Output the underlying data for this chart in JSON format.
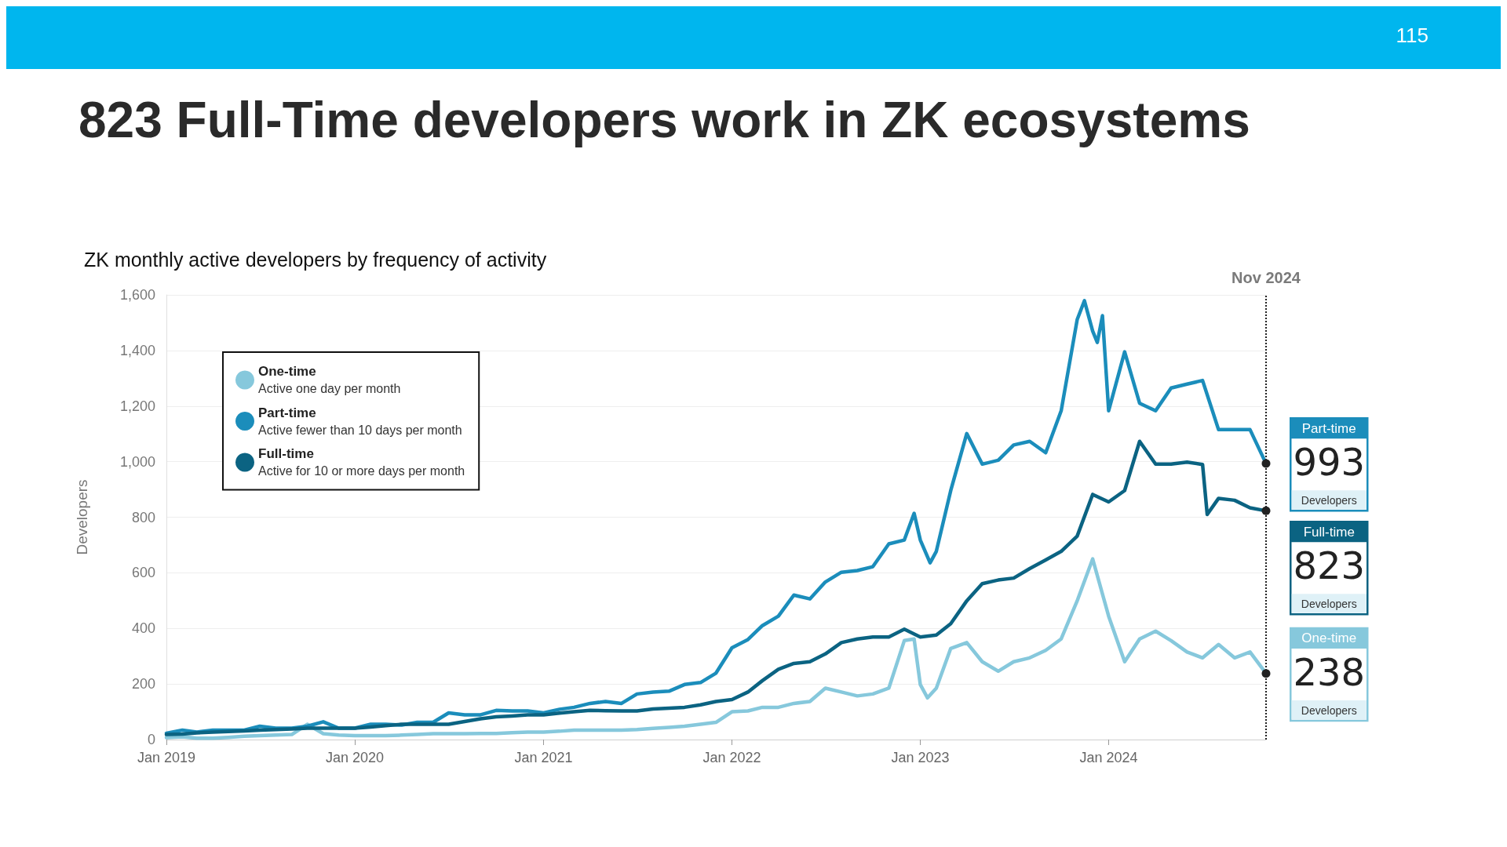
{
  "chart_data": {
    "type": "line",
    "title": "823 Full-Time developers work in ZK ecosystems",
    "subtitle": "ZK monthly active developers by frequency of activity",
    "ylabel": "Developers",
    "xlim": [
      "2019-01",
      "2024-11"
    ],
    "xticks": [
      {
        "value": "2019-01",
        "label": "Jan 2019"
      },
      {
        "value": "2020-01",
        "label": "Jan 2020"
      },
      {
        "value": "2021-01",
        "label": "Jan 2021"
      },
      {
        "value": "2022-01",
        "label": "Jan 2022"
      },
      {
        "value": "2023-01",
        "label": "Jan 2023"
      },
      {
        "value": "2024-01",
        "label": "Jan 2024"
      }
    ],
    "ylim": [
      0,
      1600
    ],
    "yticks": [
      {
        "value": 0,
        "label": "0"
      },
      {
        "value": 200,
        "label": "200"
      },
      {
        "value": 400,
        "label": "400"
      },
      {
        "value": 600,
        "label": "600"
      },
      {
        "value": 800,
        "label": "800"
      },
      {
        "value": 1000,
        "label": "1,000"
      },
      {
        "value": 1200,
        "label": "1,200"
      },
      {
        "value": 1400,
        "label": "1,400"
      },
      {
        "value": 1600,
        "label": "1,600"
      }
    ],
    "grid": "y",
    "legend": "top left",
    "marker": "none",
    "line_style": "solid",
    "ref_lines": [
      {
        "axis": "x",
        "value": "2024-11",
        "label": "Nov 2024",
        "color": "#222222",
        "line_style": "dotted"
      }
    ],
    "series": [
      {
        "name": "One-time",
        "color": "#86c8dc",
        "x": [
          "2019-01",
          "2019-02",
          "2019-03",
          "2019-04",
          "2019-05",
          "2019-06",
          "2019-07",
          "2019-08",
          "2019-09",
          "2019-10",
          "2019-11",
          "2019-12",
          "2020-01",
          "2020-02",
          "2020-03",
          "2020-04",
          "2020-05",
          "2020-06",
          "2020-07",
          "2020-08",
          "2020-09",
          "2020-10",
          "2020-11",
          "2020-12",
          "2021-01",
          "2021-02",
          "2021-03",
          "2021-04",
          "2021-05",
          "2021-06",
          "2021-07",
          "2021-08",
          "2021-09",
          "2021-10",
          "2021-11",
          "2021-12",
          "2022-01",
          "2022-02",
          "2022-03",
          "2022-04",
          "2022-05",
          "2022-06",
          "2022-07",
          "2022-08",
          "2022-09",
          "2022-10",
          "2022-11",
          "2022-12",
          "2022-12-20",
          "2023-01",
          "2023-01-15",
          "2023-02",
          "2023-03",
          "2023-04",
          "2023-05",
          "2023-06",
          "2023-07",
          "2023-08",
          "2023-09",
          "2023-10",
          "2023-11",
          "2023-12",
          "2024-01",
          "2024-02",
          "2024-03",
          "2024-04",
          "2024-05",
          "2024-06",
          "2024-07",
          "2024-08",
          "2024-09",
          "2024-10",
          "2024-11"
        ],
        "values": [
          7,
          10,
          5,
          5,
          8,
          12,
          14,
          16,
          18,
          55,
          21,
          16,
          14,
          14,
          14,
          16,
          18,
          21,
          21,
          21,
          22,
          22,
          25,
          27,
          27,
          30,
          34,
          34,
          34,
          34,
          36,
          40,
          44,
          48,
          55,
          62,
          100,
          103,
          116,
          116,
          130,
          137,
          185,
          171,
          157,
          164,
          185,
          356,
          362,
          198,
          150,
          185,
          328,
          349,
          280,
          246,
          280,
          294,
          321,
          362,
          499,
          650,
          444,
          280,
          362,
          390,
          356,
          315,
          294,
          342,
          294,
          315,
          238
        ],
        "value_labels": [
          null,
          null,
          null,
          null,
          null,
          null,
          null,
          null,
          null,
          null,
          null,
          null,
          null,
          null,
          null,
          null,
          null,
          null,
          null,
          null,
          null,
          null,
          null,
          null,
          null,
          null,
          null,
          null,
          null,
          null,
          null,
          null,
          null,
          null,
          null,
          null,
          null,
          null,
          null,
          null,
          null,
          null,
          null,
          null,
          null,
          null,
          null,
          null,
          null,
          null,
          null,
          null,
          null,
          null,
          null,
          null,
          null,
          null,
          null,
          null,
          null,
          null,
          null,
          null,
          null,
          null,
          null,
          null,
          null,
          null,
          null,
          null,
          "238"
        ]
      },
      {
        "name": "Part-time",
        "color": "#1b8dbb",
        "x": [
          "2019-01",
          "2019-02",
          "2019-03",
          "2019-04",
          "2019-05",
          "2019-06",
          "2019-07",
          "2019-08",
          "2019-09",
          "2019-10",
          "2019-11",
          "2019-12",
          "2020-01",
          "2020-02",
          "2020-03",
          "2020-04",
          "2020-05",
          "2020-06",
          "2020-07",
          "2020-08",
          "2020-09",
          "2020-10",
          "2020-11",
          "2020-12",
          "2021-01",
          "2021-02",
          "2021-03",
          "2021-04",
          "2021-05",
          "2021-06",
          "2021-07",
          "2021-08",
          "2021-09",
          "2021-10",
          "2021-11",
          "2021-12",
          "2022-01",
          "2022-02",
          "2022-03",
          "2022-04",
          "2022-05",
          "2022-06",
          "2022-07",
          "2022-08",
          "2022-09",
          "2022-10",
          "2022-11",
          "2022-12",
          "2022-12-20",
          "2023-01",
          "2023-01-20",
          "2023-02",
          "2023-03",
          "2023-04",
          "2023-05",
          "2023-06",
          "2023-07",
          "2023-08",
          "2023-09",
          "2023-10",
          "2023-11",
          "2023-11-15",
          "2023-12",
          "2023-12-10",
          "2023-12-20",
          "2024-01",
          "2024-02",
          "2024-03",
          "2024-04",
          "2024-05",
          "2024-06",
          "2024-07",
          "2024-08",
          "2024-09",
          "2024-10",
          "2024-11"
        ],
        "values": [
          23,
          34,
          27,
          34,
          34,
          34,
          48,
          41,
          41,
          48,
          64,
          41,
          41,
          55,
          55,
          52,
          62,
          62,
          96,
          89,
          89,
          105,
          103,
          103,
          96,
          109,
          116,
          130,
          137,
          130,
          164,
          171,
          174,
          198,
          205,
          239,
          330,
          360,
          410,
          444,
          520,
          506,
          567,
          602,
          608,
          622,
          704,
          718,
          814,
          718,
          636,
          677,
          896,
          1101,
          991,
          1005,
          1060,
          1073,
          1032,
          1183,
          1511,
          1579,
          1470,
          1429,
          1525,
          1183,
          1395,
          1210,
          1183,
          1265,
          1279,
          1292,
          1115,
          1115,
          1115,
          993
        ],
        "value_labels": [
          null,
          null,
          null,
          null,
          null,
          null,
          null,
          null,
          null,
          null,
          null,
          null,
          null,
          null,
          null,
          null,
          null,
          null,
          null,
          null,
          null,
          null,
          null,
          null,
          null,
          null,
          null,
          null,
          null,
          null,
          null,
          null,
          null,
          null,
          null,
          null,
          null,
          null,
          null,
          null,
          null,
          null,
          null,
          null,
          null,
          null,
          null,
          null,
          null,
          null,
          null,
          null,
          null,
          null,
          null,
          null,
          null,
          null,
          null,
          null,
          null,
          null,
          null,
          null,
          null,
          null,
          null,
          null,
          null,
          null,
          null,
          null,
          null,
          null,
          null,
          "993"
        ]
      },
      {
        "name": "Full-time",
        "color": "#0b6382",
        "x": [
          "2019-01",
          "2019-02",
          "2019-03",
          "2019-04",
          "2019-05",
          "2019-06",
          "2019-07",
          "2019-08",
          "2019-09",
          "2019-10",
          "2019-11",
          "2019-12",
          "2020-01",
          "2020-02",
          "2020-03",
          "2020-04",
          "2020-05",
          "2020-06",
          "2020-07",
          "2020-08",
          "2020-09",
          "2020-10",
          "2020-11",
          "2020-12",
          "2021-01",
          "2021-02",
          "2021-03",
          "2021-04",
          "2021-05",
          "2021-06",
          "2021-07",
          "2021-08",
          "2021-09",
          "2021-10",
          "2021-11",
          "2021-12",
          "2022-01",
          "2022-02",
          "2022-03",
          "2022-04",
          "2022-05",
          "2022-06",
          "2022-07",
          "2022-08",
          "2022-09",
          "2022-10",
          "2022-11",
          "2022-12",
          "2023-01",
          "2023-02",
          "2023-03",
          "2023-04",
          "2023-05",
          "2023-06",
          "2023-07",
          "2023-08",
          "2023-09",
          "2023-10",
          "2023-11",
          "2023-12",
          "2024-01",
          "2024-02",
          "2024-03",
          "2024-04",
          "2024-05",
          "2024-06",
          "2024-07",
          "2024-07-10",
          "2024-08",
          "2024-09",
          "2024-10",
          "2024-11"
        ],
        "values": [
          18,
          20,
          24,
          27,
          29,
          31,
          34,
          36,
          38,
          41,
          41,
          41,
          41,
          45,
          50,
          55,
          55,
          55,
          55,
          65,
          75,
          82,
          85,
          89,
          89,
          95,
          100,
          105,
          104,
          103,
          103,
          110,
          113,
          116,
          125,
          137,
          144,
          171,
          212,
          253,
          274,
          280,
          308,
          349,
          362,
          369,
          369,
          397,
          369,
          376,
          417,
          499,
          561,
          574,
          581,
          615,
          646,
          677,
          732,
          882,
          855,
          896,
          1073,
          991,
          991,
          998,
          990,
          810,
          868,
          861,
          834,
          823
        ],
        "value_labels": [
          null,
          null,
          null,
          null,
          null,
          null,
          null,
          null,
          null,
          null,
          null,
          null,
          null,
          null,
          null,
          null,
          null,
          null,
          null,
          null,
          null,
          null,
          null,
          null,
          null,
          null,
          null,
          null,
          null,
          null,
          null,
          null,
          null,
          null,
          null,
          null,
          null,
          null,
          null,
          null,
          null,
          null,
          null,
          null,
          null,
          null,
          null,
          null,
          null,
          null,
          null,
          null,
          null,
          null,
          null,
          null,
          null,
          null,
          null,
          null,
          null,
          null,
          null,
          null,
          null,
          null,
          null,
          null,
          null,
          null,
          null,
          "823"
        ]
      }
    ],
    "annotations": [
      "Active one day per month",
      "Active fewer than 10 days per month",
      "Active for 10 or more days per month",
      "115",
      "Developers",
      "Developers",
      "Developers"
    ]
  }
}
